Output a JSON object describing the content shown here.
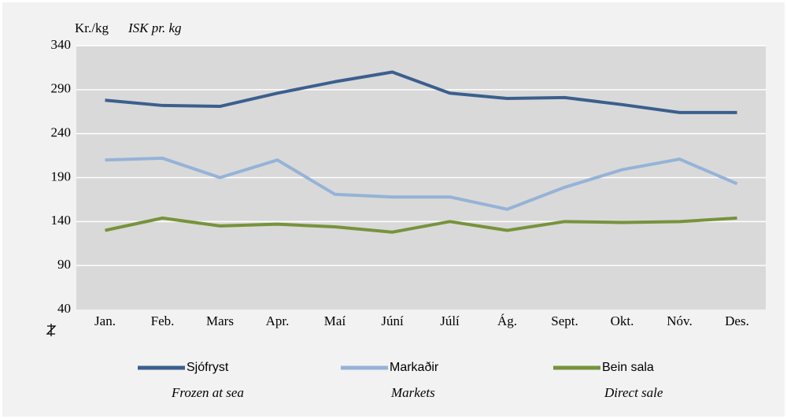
{
  "chart_data": {
    "type": "line",
    "unit_label": "Kr./kg",
    "unit_label_en": "ISK pr. kg",
    "categories": [
      "Jan.",
      "Feb.",
      "Mars",
      "Apr.",
      "Maí",
      "Júní",
      "Júlí",
      "Ág.",
      "Sept.",
      "Okt.",
      "Nóv.",
      "Des."
    ],
    "series": [
      {
        "name": "Sjófryst",
        "name_en": "Frozen at sea",
        "color": "#3b5f8e",
        "values": [
          278,
          272,
          271,
          286,
          299,
          310,
          286,
          280,
          281,
          273,
          264,
          264
        ]
      },
      {
        "name": "Markaðir",
        "name_en": "Markets",
        "color": "#95b3d7",
        "values": [
          210,
          212,
          190,
          210,
          171,
          168,
          168,
          154,
          179,
          199,
          211,
          183
        ]
      },
      {
        "name": "Bein sala",
        "name_en": "Direct sale",
        "color": "#77933c",
        "values": [
          130,
          144,
          135,
          137,
          134,
          128,
          140,
          130,
          140,
          139,
          140,
          144
        ]
      }
    ],
    "ylim": [
      40,
      340
    ],
    "yticks": [
      40,
      90,
      140,
      190,
      240,
      290,
      340
    ],
    "grid": true
  }
}
